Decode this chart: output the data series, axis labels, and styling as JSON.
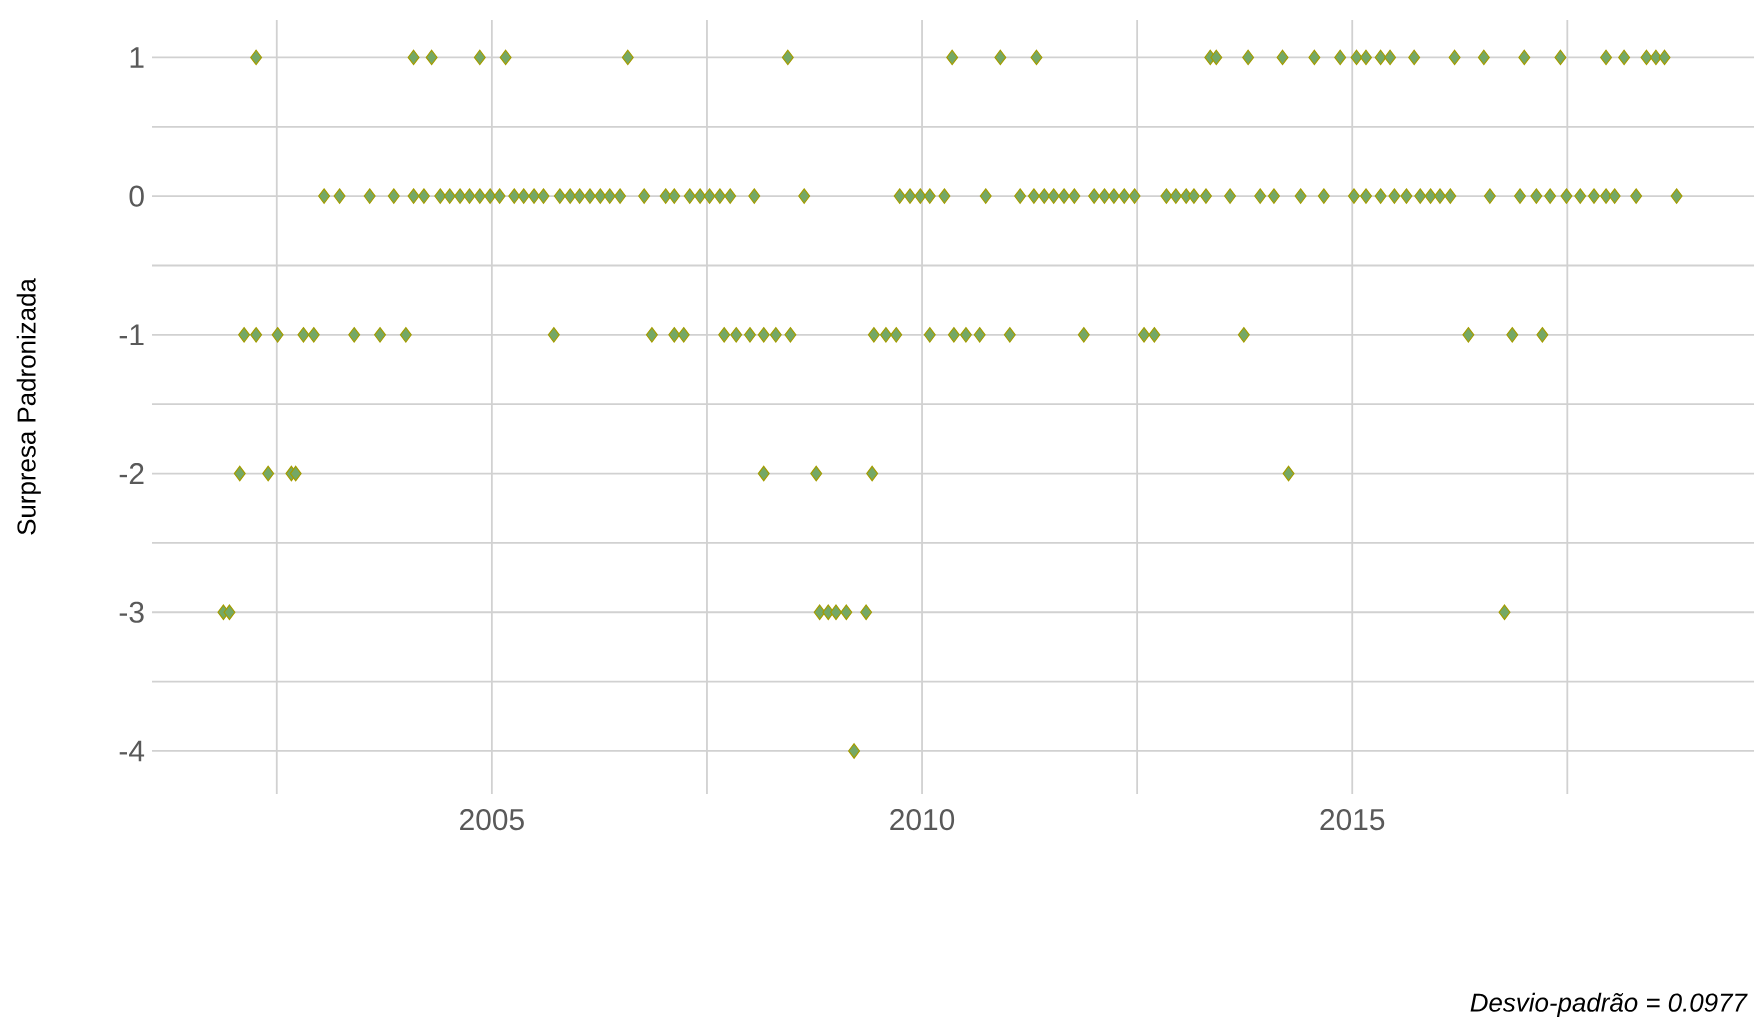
{
  "chart_data": {
    "type": "scatter",
    "ylabel": "Surpresa Padronizada",
    "annotations": [
      "Desvio-padrão = 0.0977"
    ],
    "xlim": [
      2001.05,
      2019.67
    ],
    "ylim": [
      -4.31,
      1.27
    ],
    "xticks": [
      {
        "value": 2002.5,
        "label": null
      },
      2005,
      {
        "value": 2007.5,
        "label": null
      },
      2010,
      {
        "value": 2012.5,
        "label": null
      },
      2015,
      {
        "value": 2017.5,
        "label": null
      }
    ],
    "yticks": [
      -4,
      {
        "value": -3.5,
        "label": null
      },
      -3,
      {
        "value": -2.5,
        "label": null
      },
      -2,
      {
        "value": -1.5,
        "label": null
      },
      -1,
      {
        "value": -0.5,
        "label": null
      },
      0,
      {
        "value": 0.5,
        "label": null
      },
      1
    ],
    "grid": true,
    "marker": "diamond",
    "series": [
      {
        "color": "#74a866",
        "x": [
          2002.26,
          2004.09,
          2004.3,
          2004.86,
          2005.16,
          2006.58,
          2008.44,
          2010.35,
          2010.91,
          2011.33,
          2013.35,
          2013.42,
          2013.79,
          2014.19,
          2014.56,
          2014.86,
          2015.05,
          2015.16,
          2015.33,
          2015.44,
          2015.72,
          2016.19,
          2016.53,
          2017.0,
          2017.42,
          2017.95,
          2018.16,
          2018.42,
          2018.53,
          2018.63,
          2003.05,
          2003.23,
          2003.58,
          2003.86,
          2004.09,
          2004.21,
          2004.4,
          2004.51,
          2004.63,
          2004.74,
          2004.86,
          2004.98,
          2005.09,
          2005.26,
          2005.37,
          2005.49,
          2005.6,
          2005.79,
          2005.91,
          2006.02,
          2006.14,
          2006.26,
          2006.37,
          2006.49,
          2006.77,
          2007.02,
          2007.12,
          2007.3,
          2007.42,
          2007.53,
          2007.65,
          2007.77,
          2008.05,
          2008.63,
          2009.74,
          2009.86,
          2009.98,
          2010.09,
          2010.26,
          2010.74,
          2011.14,
          2011.3,
          2011.42,
          2011.53,
          2011.65,
          2011.77,
          2012.0,
          2012.12,
          2012.23,
          2012.35,
          2012.47,
          2012.84,
          2012.95,
          2013.07,
          2013.16,
          2013.3,
          2013.58,
          2013.93,
          2014.09,
          2014.4,
          2014.67,
          2015.02,
          2015.16,
          2015.33,
          2015.49,
          2015.63,
          2015.79,
          2015.91,
          2016.02,
          2016.14,
          2016.6,
          2016.95,
          2017.14,
          2017.3,
          2017.49,
          2017.65,
          2017.81,
          2017.95,
          2018.05,
          2018.3,
          2018.77,
          2002.12,
          2002.26,
          2002.51,
          2002.81,
          2002.93,
          2003.4,
          2003.7,
          2004.0,
          2005.72,
          2006.86,
          2007.12,
          2007.23,
          2007.7,
          2007.84,
          2008.0,
          2008.16,
          2008.3,
          2008.47,
          2009.44,
          2009.58,
          2009.7,
          2010.09,
          2010.37,
          2010.51,
          2010.67,
          2011.02,
          2011.88,
          2012.58,
          2012.7,
          2013.74,
          2016.35,
          2016.86,
          2017.21,
          2002.07,
          2002.4,
          2002.67,
          2002.72,
          2008.16,
          2008.77,
          2009.42,
          2014.26,
          2001.88,
          2001.95,
          2008.81,
          2008.91,
          2009.0,
          2009.12,
          2009.35,
          2016.77,
          2009.21
        ],
        "values": [
          1,
          1,
          1,
          1,
          1,
          1,
          1,
          1,
          1,
          1,
          1,
          1,
          1,
          1,
          1,
          1,
          1,
          1,
          1,
          1,
          1,
          1,
          1,
          1,
          1,
          1,
          1,
          1,
          1,
          1,
          0,
          0,
          0,
          0,
          0,
          0,
          0,
          0,
          0,
          0,
          0,
          0,
          0,
          0,
          0,
          0,
          0,
          0,
          0,
          0,
          0,
          0,
          0,
          0,
          0,
          0,
          0,
          0,
          0,
          0,
          0,
          0,
          0,
          0,
          0,
          0,
          0,
          0,
          0,
          0,
          0,
          0,
          0,
          0,
          0,
          0,
          0,
          0,
          0,
          0,
          0,
          0,
          0,
          0,
          0,
          0,
          0,
          0,
          0,
          0,
          0,
          0,
          0,
          0,
          0,
          0,
          0,
          0,
          0,
          0,
          0,
          0,
          0,
          0,
          0,
          0,
          0,
          0,
          0,
          0,
          0,
          -1,
          -1,
          -1,
          -1,
          -1,
          -1,
          -1,
          -1,
          -1,
          -1,
          -1,
          -1,
          -1,
          -1,
          -1,
          -1,
          -1,
          -1,
          -1,
          -1,
          -1,
          -1,
          -1,
          -1,
          -1,
          -1,
          -1,
          -1,
          -1,
          -1,
          -1,
          -1,
          -1,
          -2,
          -2,
          -2,
          -2,
          -2,
          -2,
          -2,
          -2,
          -3,
          -3,
          -3,
          -3,
          -3,
          -3,
          -3,
          -3,
          -4
        ]
      }
    ]
  }
}
